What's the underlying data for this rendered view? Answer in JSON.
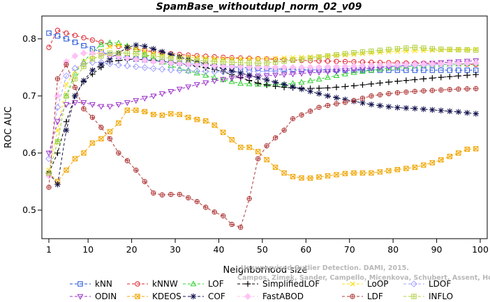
{
  "chart_data": {
    "type": "line",
    "title": "SpamBase_withoutdupl_norm_02_v09",
    "xlabel": "Neighborhood size",
    "ylabel": "ROC AUC",
    "xlim": [
      1,
      100
    ],
    "ylim": [
      0.45,
      0.84
    ],
    "xticks": [
      1,
      10,
      20,
      30,
      40,
      50,
      60,
      70,
      80,
      90,
      100
    ],
    "yticks": [
      0.5,
      0.6,
      0.7,
      0.8
    ],
    "legend_position": "bottom",
    "grid": false,
    "series": [
      {
        "name": "kNN",
        "color": "#1f4fd6",
        "marker": "square",
        "points": [
          [
            1,
            0.81
          ],
          [
            5,
            0.8
          ],
          [
            10,
            0.785
          ],
          [
            15,
            0.772
          ],
          [
            20,
            0.765
          ],
          [
            25,
            0.762
          ],
          [
            30,
            0.758
          ],
          [
            40,
            0.752
          ],
          [
            50,
            0.748
          ],
          [
            60,
            0.746
          ],
          [
            70,
            0.745
          ],
          [
            80,
            0.745
          ],
          [
            90,
            0.745
          ],
          [
            100,
            0.745
          ]
        ]
      },
      {
        "name": "kNNW",
        "color": "#e0202a",
        "marker": "circle",
        "points": [
          [
            1,
            0.785
          ],
          [
            2,
            0.81
          ],
          [
            3,
            0.815
          ],
          [
            5,
            0.81
          ],
          [
            10,
            0.8
          ],
          [
            15,
            0.79
          ],
          [
            20,
            0.782
          ],
          [
            25,
            0.778
          ],
          [
            30,
            0.773
          ],
          [
            40,
            0.768
          ],
          [
            50,
            0.765
          ],
          [
            60,
            0.762
          ],
          [
            70,
            0.76
          ],
          [
            80,
            0.758
          ],
          [
            90,
            0.757
          ],
          [
            100,
            0.755
          ]
        ]
      },
      {
        "name": "LOF",
        "color": "#2ed12e",
        "marker": "triangle-up",
        "points": [
          [
            1,
            0.565
          ],
          [
            3,
            0.62
          ],
          [
            5,
            0.7
          ],
          [
            7,
            0.74
          ],
          [
            10,
            0.77
          ],
          [
            13,
            0.79
          ],
          [
            16,
            0.795
          ],
          [
            20,
            0.785
          ],
          [
            25,
            0.765
          ],
          [
            30,
            0.75
          ],
          [
            35,
            0.74
          ],
          [
            40,
            0.73
          ],
          [
            45,
            0.722
          ],
          [
            50,
            0.72
          ],
          [
            55,
            0.72
          ],
          [
            60,
            0.725
          ],
          [
            70,
            0.74
          ],
          [
            80,
            0.75
          ],
          [
            90,
            0.755
          ],
          [
            100,
            0.757
          ]
        ]
      },
      {
        "name": "SimplifiedLOF",
        "color": "#000000",
        "marker": "plus",
        "points": [
          [
            1,
            0.565
          ],
          [
            3,
            0.6
          ],
          [
            5,
            0.655
          ],
          [
            7,
            0.7
          ],
          [
            9,
            0.725
          ],
          [
            12,
            0.745
          ],
          [
            15,
            0.76
          ],
          [
            20,
            0.765
          ],
          [
            25,
            0.762
          ],
          [
            30,
            0.758
          ],
          [
            35,
            0.752
          ],
          [
            40,
            0.745
          ],
          [
            45,
            0.732
          ],
          [
            50,
            0.72
          ],
          [
            55,
            0.715
          ],
          [
            60,
            0.713
          ],
          [
            65,
            0.714
          ],
          [
            70,
            0.717
          ],
          [
            80,
            0.725
          ],
          [
            90,
            0.732
          ],
          [
            100,
            0.738
          ]
        ]
      },
      {
        "name": "LoOP",
        "color": "#ffe01a",
        "marker": "cross",
        "points": [
          [
            1,
            0.57
          ],
          [
            3,
            0.64
          ],
          [
            5,
            0.72
          ],
          [
            8,
            0.755
          ],
          [
            12,
            0.775
          ],
          [
            16,
            0.79
          ],
          [
            20,
            0.785
          ],
          [
            25,
            0.775
          ],
          [
            30,
            0.77
          ],
          [
            40,
            0.765
          ],
          [
            50,
            0.765
          ],
          [
            60,
            0.768
          ],
          [
            70,
            0.772
          ],
          [
            80,
            0.778
          ],
          [
            90,
            0.78
          ],
          [
            100,
            0.782
          ]
        ]
      },
      {
        "name": "LDOF",
        "color": "#a0a0ff",
        "marker": "diamond",
        "points": [
          [
            1,
            0.59
          ],
          [
            3,
            0.68
          ],
          [
            5,
            0.735
          ],
          [
            8,
            0.755
          ],
          [
            12,
            0.76
          ],
          [
            16,
            0.755
          ],
          [
            20,
            0.752
          ],
          [
            25,
            0.748
          ],
          [
            30,
            0.745
          ],
          [
            40,
            0.742
          ],
          [
            50,
            0.743
          ],
          [
            60,
            0.745
          ],
          [
            70,
            0.748
          ],
          [
            80,
            0.752
          ],
          [
            90,
            0.755
          ],
          [
            100,
            0.758
          ]
        ]
      },
      {
        "name": "ODIN",
        "color": "#9b30c8",
        "marker": "triangle-down",
        "points": [
          [
            1,
            0.6
          ],
          [
            3,
            0.655
          ],
          [
            5,
            0.685
          ],
          [
            8,
            0.69
          ],
          [
            11,
            0.685
          ],
          [
            14,
            0.68
          ],
          [
            17,
            0.685
          ],
          [
            20,
            0.69
          ],
          [
            25,
            0.7
          ],
          [
            30,
            0.71
          ],
          [
            35,
            0.72
          ],
          [
            40,
            0.728
          ],
          [
            45,
            0.733
          ],
          [
            50,
            0.735
          ],
          [
            60,
            0.74
          ],
          [
            70,
            0.745
          ],
          [
            80,
            0.752
          ],
          [
            90,
            0.758
          ],
          [
            100,
            0.762
          ]
        ]
      },
      {
        "name": "KDEOS",
        "color": "#f0a500",
        "marker": "square-x",
        "points": [
          [
            1,
            0.565
          ],
          [
            3,
            0.55
          ],
          [
            5,
            0.57
          ],
          [
            7,
            0.59
          ],
          [
            9,
            0.6
          ],
          [
            10,
            0.615
          ],
          [
            12,
            0.62
          ],
          [
            14,
            0.63
          ],
          [
            16,
            0.645
          ],
          [
            18,
            0.66
          ],
          [
            19,
            0.675
          ],
          [
            22,
            0.675
          ],
          [
            26,
            0.665
          ],
          [
            30,
            0.67
          ],
          [
            34,
            0.66
          ],
          [
            38,
            0.655
          ],
          [
            42,
            0.63
          ],
          [
            45,
            0.61
          ],
          [
            48,
            0.61
          ],
          [
            50,
            0.595
          ],
          [
            53,
            0.575
          ],
          [
            56,
            0.56
          ],
          [
            60,
            0.555
          ],
          [
            65,
            0.56
          ],
          [
            70,
            0.565
          ],
          [
            75,
            0.565
          ],
          [
            80,
            0.57
          ],
          [
            85,
            0.575
          ],
          [
            90,
            0.585
          ],
          [
            95,
            0.6
          ],
          [
            98,
            0.61
          ],
          [
            100,
            0.605
          ]
        ]
      },
      {
        "name": "COF",
        "color": "#12124e",
        "marker": "asterisk",
        "points": [
          [
            1,
            0.565
          ],
          [
            3,
            0.545
          ],
          [
            5,
            0.64
          ],
          [
            7,
            0.7
          ],
          [
            10,
            0.74
          ],
          [
            14,
            0.76
          ],
          [
            18,
            0.78
          ],
          [
            20,
            0.79
          ],
          [
            23,
            0.787
          ],
          [
            26,
            0.78
          ],
          [
            30,
            0.77
          ],
          [
            35,
            0.76
          ],
          [
            40,
            0.75
          ],
          [
            45,
            0.74
          ],
          [
            50,
            0.73
          ],
          [
            55,
            0.72
          ],
          [
            60,
            0.71
          ],
          [
            65,
            0.7
          ],
          [
            70,
            0.692
          ],
          [
            75,
            0.685
          ],
          [
            80,
            0.68
          ],
          [
            85,
            0.678
          ],
          [
            90,
            0.675
          ],
          [
            95,
            0.672
          ],
          [
            100,
            0.668
          ]
        ]
      },
      {
        "name": "FastABOD",
        "color": "#ffc2f5",
        "marker": "diamond-filled",
        "points": [
          [
            1,
            0.56
          ],
          [
            3,
            0.7
          ],
          [
            5,
            0.76
          ],
          [
            8,
            0.775
          ],
          [
            12,
            0.775
          ],
          [
            16,
            0.77
          ],
          [
            20,
            0.765
          ],
          [
            25,
            0.76
          ],
          [
            30,
            0.757
          ],
          [
            40,
            0.752
          ],
          [
            50,
            0.75
          ],
          [
            60,
            0.75
          ],
          [
            70,
            0.752
          ],
          [
            80,
            0.755
          ],
          [
            90,
            0.756
          ],
          [
            100,
            0.758
          ]
        ]
      },
      {
        "name": "LDF",
        "color": "#b13b3b",
        "marker": "circle-plus",
        "points": [
          [
            1,
            0.54
          ],
          [
            2,
            0.655
          ],
          [
            3,
            0.73
          ],
          [
            4,
            0.75
          ],
          [
            5,
            0.755
          ],
          [
            6,
            0.73
          ],
          [
            7,
            0.715
          ],
          [
            8,
            0.69
          ],
          [
            10,
            0.665
          ],
          [
            12,
            0.66
          ],
          [
            13,
            0.645
          ],
          [
            15,
            0.625
          ],
          [
            17,
            0.6
          ],
          [
            20,
            0.58
          ],
          [
            23,
            0.55
          ],
          [
            25,
            0.53
          ],
          [
            28,
            0.525
          ],
          [
            30,
            0.53
          ],
          [
            32,
            0.525
          ],
          [
            35,
            0.515
          ],
          [
            38,
            0.5
          ],
          [
            41,
            0.49
          ],
          [
            43,
            0.475
          ],
          [
            44,
            0.47
          ],
          [
            45,
            0.47
          ],
          [
            46,
            0.485
          ],
          [
            47,
            0.52
          ],
          [
            48,
            0.555
          ],
          [
            49,
            0.59
          ],
          [
            50,
            0.605
          ],
          [
            52,
            0.62
          ],
          [
            55,
            0.64
          ],
          [
            57,
            0.66
          ],
          [
            60,
            0.67
          ],
          [
            63,
            0.68
          ],
          [
            66,
            0.685
          ],
          [
            70,
            0.69
          ],
          [
            75,
            0.7
          ],
          [
            80,
            0.705
          ],
          [
            85,
            0.708
          ],
          [
            90,
            0.71
          ],
          [
            95,
            0.712
          ],
          [
            100,
            0.713
          ]
        ]
      },
      {
        "name": "INFLO",
        "color": "#b0d040",
        "marker": "square-plus",
        "points": [
          [
            1,
            0.565
          ],
          [
            3,
            0.62
          ],
          [
            5,
            0.7
          ],
          [
            8,
            0.745
          ],
          [
            11,
            0.765
          ],
          [
            15,
            0.775
          ],
          [
            20,
            0.775
          ],
          [
            25,
            0.77
          ],
          [
            30,
            0.765
          ],
          [
            40,
            0.76
          ],
          [
            50,
            0.757
          ],
          [
            60,
            0.765
          ],
          [
            70,
            0.775
          ],
          [
            80,
            0.782
          ],
          [
            85,
            0.785
          ],
          [
            90,
            0.782
          ],
          [
            100,
            0.78
          ]
        ]
      }
    ]
  },
  "watermark": {
    "line1": "Unsupervised Outlier Detection. DAMI, 2015.",
    "line2": "Campos, Zimek, Sander, Campello, Micenkova, Schubert, Assent, Houle"
  }
}
